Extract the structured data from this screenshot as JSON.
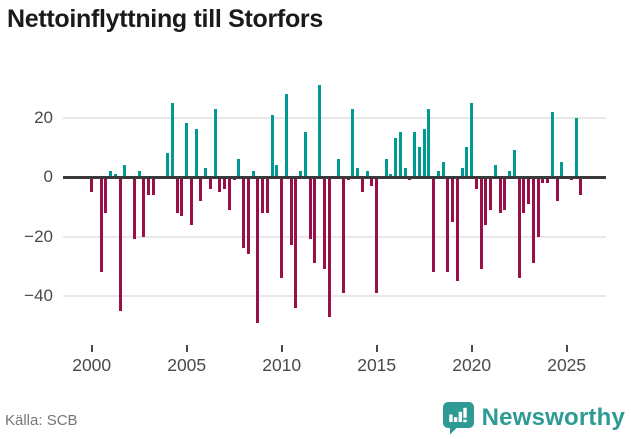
{
  "title": "Nettoinflyttning till Storfors",
  "source": "Källa: SCB",
  "brand": {
    "name": "Newsworthy",
    "icon": "newsworthy-speech-bubble-barchart-badge"
  },
  "colors": {
    "positive_bar": "#009a93",
    "negative_bar": "#990f47",
    "title_text": "#1a1a1a",
    "axis_text": "#4a4a4a",
    "gridline": "#e8e8e8",
    "zero_line": "#3a3a3a",
    "source_text": "#767676",
    "brand_teal": "#2d9b94",
    "background": "#ffffff"
  },
  "chart_data": {
    "type": "bar",
    "title": "Nettoinflyttning till Storfors",
    "period": "quarterly",
    "xlabel": "",
    "ylabel": "",
    "ylim": [
      -52,
      33
    ],
    "grid": "horizontal",
    "legend": "none",
    "yticks": [
      20,
      0,
      -20,
      -40
    ],
    "ytick_labels": [
      "20",
      "0",
      "−20",
      "−40"
    ],
    "xtick_years": [
      2000,
      2005,
      2010,
      2015,
      2020,
      2025
    ],
    "xtick_labels": [
      "2000",
      "2005",
      "2010",
      "2015",
      "2020",
      "2025"
    ],
    "x": [
      "2000Q1",
      "2000Q2",
      "2000Q3",
      "2000Q4",
      "2001Q1",
      "2001Q2",
      "2001Q3",
      "2001Q4",
      "2002Q1",
      "2002Q2",
      "2002Q3",
      "2002Q4",
      "2003Q1",
      "2003Q2",
      "2003Q3",
      "2003Q4",
      "2004Q1",
      "2004Q2",
      "2004Q3",
      "2004Q4",
      "2005Q1",
      "2005Q2",
      "2005Q3",
      "2005Q4",
      "2006Q1",
      "2006Q2",
      "2006Q3",
      "2006Q4",
      "2007Q1",
      "2007Q2",
      "2007Q3",
      "2007Q4",
      "2008Q1",
      "2008Q2",
      "2008Q3",
      "2008Q4",
      "2009Q1",
      "2009Q2",
      "2009Q3",
      "2009Q4",
      "2010Q1",
      "2010Q2",
      "2010Q3",
      "2010Q4",
      "2011Q1",
      "2011Q2",
      "2011Q3",
      "2011Q4",
      "2012Q1",
      "2012Q2",
      "2012Q3",
      "2012Q4",
      "2013Q1",
      "2013Q2",
      "2013Q3",
      "2013Q4",
      "2014Q1",
      "2014Q2",
      "2014Q3",
      "2014Q4",
      "2015Q1",
      "2015Q2",
      "2015Q3",
      "2015Q4",
      "2016Q1",
      "2016Q2",
      "2016Q3",
      "2016Q4",
      "2017Q1",
      "2017Q2",
      "2017Q3",
      "2017Q4",
      "2018Q1",
      "2018Q2",
      "2018Q3",
      "2018Q4",
      "2019Q1",
      "2019Q2",
      "2019Q3",
      "2019Q4",
      "2020Q1",
      "2020Q2",
      "2020Q3",
      "2020Q4",
      "2021Q1",
      "2021Q2",
      "2021Q3",
      "2021Q4",
      "2022Q1",
      "2022Q2",
      "2022Q3",
      "2022Q4",
      "2023Q1",
      "2023Q2",
      "2023Q3",
      "2023Q4",
      "2024Q1",
      "2024Q2",
      "2024Q3",
      "2024Q4",
      "2025Q1",
      "2025Q2",
      "2025Q3",
      "2025Q4"
    ],
    "values": [
      -5,
      0,
      -32,
      -12,
      2,
      1,
      -45,
      4,
      0,
      -21,
      2,
      -20,
      -6,
      -6,
      0,
      0,
      8,
      25,
      -12,
      -13,
      18,
      -16,
      16,
      -8,
      3,
      -4,
      23,
      -5,
      -4,
      -11,
      -1,
      6,
      -24,
      -26,
      2,
      -49,
      -12,
      -12,
      21,
      4,
      -34,
      28,
      -23,
      -44,
      2,
      15,
      -21,
      -29,
      31,
      -31,
      -47,
      0,
      6,
      -39,
      -1,
      23,
      3,
      -5,
      2,
      -3,
      -39,
      0,
      6,
      1,
      13,
      15,
      3,
      -1,
      15,
      10,
      16,
      23,
      -32,
      2,
      5,
      -32,
      -15,
      -35,
      3,
      10,
      25,
      -4,
      -31,
      -16,
      -11,
      4,
      -12,
      -11,
      2,
      9,
      -34,
      -12,
      -9,
      -29,
      -20,
      -2,
      -2,
      22,
      -8,
      5,
      0,
      -1,
      20,
      -6
    ]
  }
}
